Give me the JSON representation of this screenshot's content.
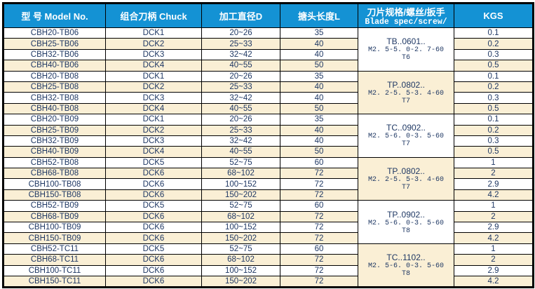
{
  "colors": {
    "header_bg": "#1492D4",
    "header_text": "#FFFFFF",
    "row_alt_bg": "#FAEFD5",
    "text": "#1F3864",
    "border": "#000000"
  },
  "table": {
    "headers": [
      {
        "label": "型 号 Model No."
      },
      {
        "label": "组合刀柄 Chuck"
      },
      {
        "label": "加工直径D"
      },
      {
        "label": "搪头长度L"
      },
      {
        "label": "刀片规格/螺丝/扳手",
        "sublabel": "Blade spec/screw/"
      },
      {
        "label": "KGS"
      }
    ],
    "groups": [
      {
        "blade_spec": {
          "line1": "TB..0601..",
          "line2": "M2. 5-5. 0-2. 7-60",
          "line3": "T6"
        },
        "rows": [
          {
            "model": "CBH20-TB06",
            "chuck": "DCK1",
            "diameter": "20~26",
            "length": "35",
            "kgs": "0.1"
          },
          {
            "model": "CBH25-TB06",
            "chuck": "DCK2",
            "diameter": "25~33",
            "length": "40",
            "kgs": "0.2"
          },
          {
            "model": "CBH32-TB06",
            "chuck": "DCK3",
            "diameter": "32~42",
            "length": "40",
            "kgs": "0.3"
          },
          {
            "model": "CBH40-TB06",
            "chuck": "DCK4",
            "diameter": "40~55",
            "length": "50",
            "kgs": "0.5"
          }
        ]
      },
      {
        "blade_spec": {
          "line1": "TP..0802..",
          "line2": "M2. 2-5. 5-3. 4-60",
          "line3": "T7"
        },
        "rows": [
          {
            "model": "CBH20-TB08",
            "chuck": "DCK1",
            "diameter": "20~26",
            "length": "35",
            "kgs": "0.1"
          },
          {
            "model": "CBH25-TB08",
            "chuck": "DCK2",
            "diameter": "25~33",
            "length": "40",
            "kgs": "0.2"
          },
          {
            "model": "CBH32-TB08",
            "chuck": "DCK3",
            "diameter": "32~42",
            "length": "40",
            "kgs": "0.3"
          },
          {
            "model": "CBH40-TB08",
            "chuck": "DCK4",
            "diameter": "40~55",
            "length": "50",
            "kgs": "0.5"
          }
        ]
      },
      {
        "blade_spec": {
          "line1": "TC..0902..",
          "line2": "M2. 5-6. 0-3. 5-60",
          "line3": "T7"
        },
        "rows": [
          {
            "model": "CBH20-TB09",
            "chuck": "DCK1",
            "diameter": "20~26",
            "length": "35",
            "kgs": "0.1"
          },
          {
            "model": "CBH25-TB09",
            "chuck": "DCK2",
            "diameter": "25~33",
            "length": "40",
            "kgs": "0.2"
          },
          {
            "model": "CBH32-TB09",
            "chuck": "DCK3",
            "diameter": "32~42",
            "length": "40",
            "kgs": "0.3"
          },
          {
            "model": "CBH40-TB09",
            "chuck": "DCK4",
            "diameter": "40~55",
            "length": "50",
            "kgs": "0.5"
          }
        ]
      },
      {
        "blade_spec": {
          "line1": "TP..0802..",
          "line2": "M2. 2-5. 5-3. 4-60",
          "line3": "T7"
        },
        "rows": [
          {
            "model": "CBH52-TB08",
            "chuck": "DCK5",
            "diameter": "52~75",
            "length": "60",
            "kgs": "1"
          },
          {
            "model": "CBH68-TB08",
            "chuck": "DCK6",
            "diameter": "68~102",
            "length": "72",
            "kgs": "2"
          },
          {
            "model": "CBH100-TB08",
            "chuck": "DCK6",
            "diameter": "100~152",
            "length": "72",
            "kgs": "2.9"
          },
          {
            "model": "CBH150-TB08",
            "chuck": "DCK6",
            "diameter": "150~202",
            "length": "72",
            "kgs": "4.2"
          }
        ]
      },
      {
        "blade_spec": {
          "line1": "TP..0902..",
          "line2": "M2. 5-6. 0-3. 5-60",
          "line3": "T8"
        },
        "rows": [
          {
            "model": "CBH52-TB09",
            "chuck": "DCK5",
            "diameter": "52~75",
            "length": "60",
            "kgs": "1"
          },
          {
            "model": "CBH68-TB09",
            "chuck": "DCK6",
            "diameter": "68~102",
            "length": "72",
            "kgs": "2"
          },
          {
            "model": "CBH100-TB09",
            "chuck": "DCK6",
            "diameter": "100~152",
            "length": "72",
            "kgs": "2.9"
          },
          {
            "model": "CBH150-TB09",
            "chuck": "DCK6",
            "diameter": "150~202",
            "length": "72",
            "kgs": "4.2"
          }
        ]
      },
      {
        "blade_spec": {
          "line1": "TC..1102..",
          "line2": "M2. 5-6. 0-3. 5-60",
          "line3": "T8"
        },
        "rows": [
          {
            "model": "CBH52-TC11",
            "chuck": "DCK5",
            "diameter": "52~75",
            "length": "60",
            "kgs": "1"
          },
          {
            "model": "CBH68-TC11",
            "chuck": "DCK6",
            "diameter": "68~102",
            "length": "72",
            "kgs": "2"
          },
          {
            "model": "CBH100-TC11",
            "chuck": "DCK6",
            "diameter": "100~152",
            "length": "72",
            "kgs": "2.9"
          },
          {
            "model": "CBH150-TC11",
            "chuck": "DCK6",
            "diameter": "150~202",
            "length": "72",
            "kgs": "4.2"
          }
        ]
      }
    ]
  }
}
